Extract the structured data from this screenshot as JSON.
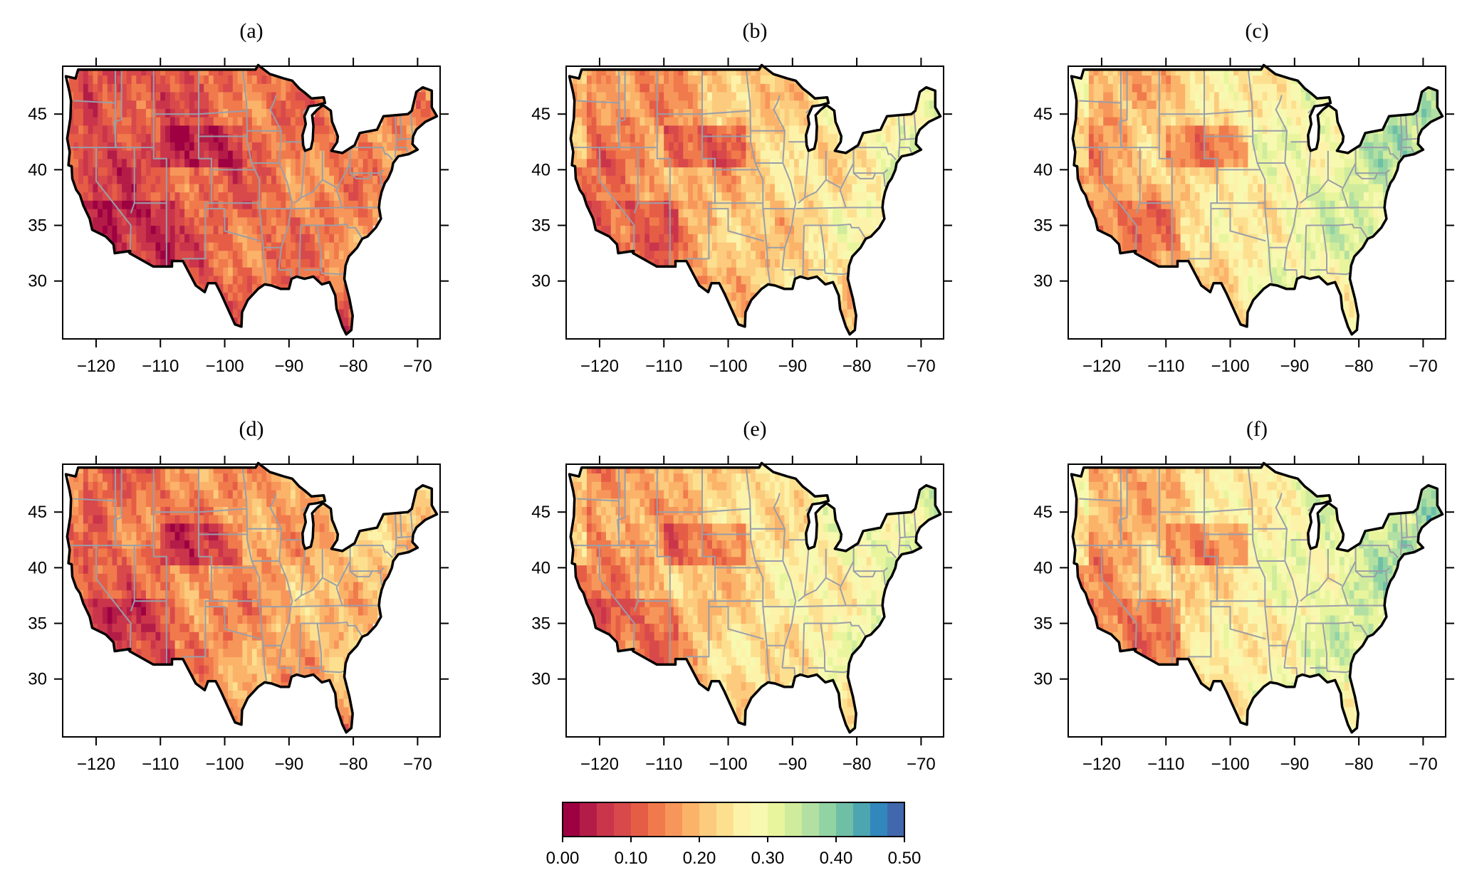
{
  "panels": [
    {
      "id": "a",
      "title": "(a)",
      "mean_value": 0.12
    },
    {
      "id": "b",
      "title": "(b)",
      "mean_value": 0.2
    },
    {
      "id": "c",
      "title": "(c)",
      "mean_value": 0.25
    },
    {
      "id": "d",
      "title": "(d)",
      "mean_value": 0.16
    },
    {
      "id": "e",
      "title": "(e)",
      "mean_value": 0.22
    },
    {
      "id": "f",
      "title": "(f)",
      "mean_value": 0.25
    }
  ],
  "axes": {
    "x_ticks": [
      -120,
      -110,
      -100,
      -90,
      -80,
      -70
    ],
    "x_tick_labels": [
      "−120",
      "−110",
      "−100",
      "−90",
      "−80",
      "−70"
    ],
    "y_ticks": [
      30,
      35,
      40,
      45
    ],
    "y_tick_labels": [
      "30",
      "35",
      "40",
      "45"
    ],
    "xlim": [
      -125.2,
      -66.5
    ],
    "ylim": [
      24.8,
      49.3
    ]
  },
  "colorbar": {
    "min": 0.0,
    "max": 0.5,
    "step": 0.025,
    "tick_labels": [
      "0.00",
      "0.10",
      "0.20",
      "0.30",
      "0.40",
      "0.50"
    ],
    "colors": [
      "#9e0142",
      "#b41c48",
      "#ca354b",
      "#d8494b",
      "#e65d46",
      "#f07a4c",
      "#f7965a",
      "#fbb369",
      "#fccb7e",
      "#fde08f",
      "#fdf2a9",
      "#f7f9b1",
      "#e8f59d",
      "#cfec9c",
      "#b2e0a2",
      "#92d3a4",
      "#6ebfa6",
      "#4da5b1",
      "#3287bc",
      "#4167ad"
    ]
  },
  "chart_data": {
    "type": "heatmap",
    "title": "",
    "xlabel": "",
    "ylabel": "",
    "panels": [
      "(a)",
      "(b)",
      "(c)",
      "(d)",
      "(e)",
      "(f)"
    ],
    "x_axis_ticks": [
      -120,
      -110,
      -100,
      -90,
      -80,
      -70
    ],
    "y_axis_ticks": [
      30,
      35,
      40,
      45
    ],
    "color_scale": {
      "min": 0.0,
      "max": 0.5,
      "ticks": [
        0.0,
        0.1,
        0.2,
        0.3,
        0.4,
        0.5
      ]
    }
  },
  "colors": {
    "outline": "#000000",
    "state_lines": "#9a9ea8",
    "frame": "#000000"
  }
}
